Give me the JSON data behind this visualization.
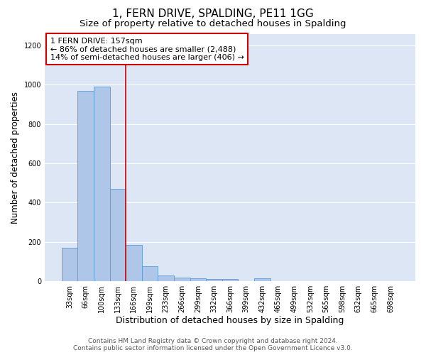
{
  "title": "1, FERN DRIVE, SPALDING, PE11 1GG",
  "subtitle": "Size of property relative to detached houses in Spalding",
  "xlabel": "Distribution of detached houses by size in Spalding",
  "ylabel": "Number of detached properties",
  "categories": [
    "33sqm",
    "66sqm",
    "100sqm",
    "133sqm",
    "166sqm",
    "199sqm",
    "233sqm",
    "266sqm",
    "299sqm",
    "332sqm",
    "366sqm",
    "399sqm",
    "432sqm",
    "465sqm",
    "499sqm",
    "532sqm",
    "565sqm",
    "598sqm",
    "632sqm",
    "665sqm",
    "698sqm"
  ],
  "values": [
    170,
    970,
    990,
    470,
    185,
    75,
    30,
    20,
    15,
    10,
    10,
    0,
    15,
    0,
    0,
    0,
    0,
    0,
    0,
    0,
    0
  ],
  "bar_color": "#aec6e8",
  "bar_edge_color": "#5b9bd5",
  "vline_index": 3.5,
  "vline_color": "#cc0000",
  "annotation_text": "1 FERN DRIVE: 157sqm\n← 86% of detached houses are smaller (2,488)\n14% of semi-detached houses are larger (406) →",
  "annotation_box_color": "#ffffff",
  "annotation_box_edge": "#cc0000",
  "ylim": [
    0,
    1260
  ],
  "yticks": [
    0,
    200,
    400,
    600,
    800,
    1000,
    1200
  ],
  "background_color": "#dce6f5",
  "grid_color": "#ffffff",
  "footer_line1": "Contains HM Land Registry data © Crown copyright and database right 2024.",
  "footer_line2": "Contains public sector information licensed under the Open Government Licence v3.0.",
  "title_fontsize": 11,
  "subtitle_fontsize": 9.5,
  "xlabel_fontsize": 9,
  "ylabel_fontsize": 8.5,
  "tick_fontsize": 7,
  "annotation_fontsize": 8,
  "footer_fontsize": 6.5
}
